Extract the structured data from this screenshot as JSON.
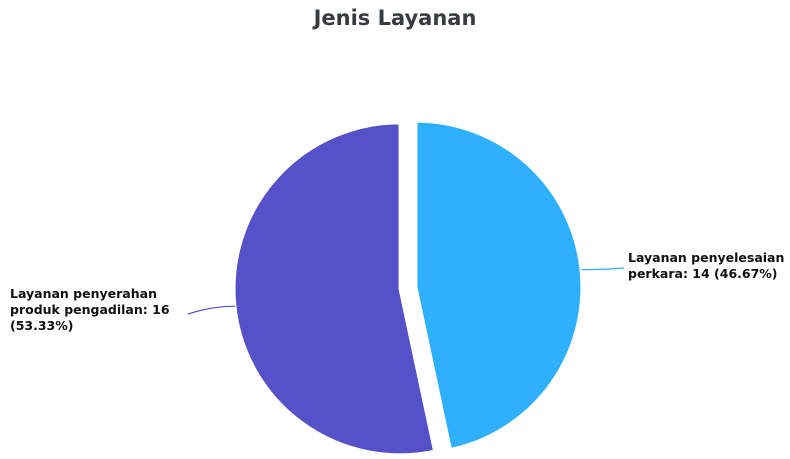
{
  "chart_data": {
    "type": "pie",
    "title": "Jenis Layanan",
    "slices": [
      {
        "name": "Layanan penyelesaian perkara",
        "value": 14,
        "percent": 46.67,
        "label_lines": [
          "Layanan penyelesaian",
          "perkara: 14 (46.67%)"
        ],
        "color": "#2fb0ff"
      },
      {
        "name": "Layanan penyerahan produk pengadilan",
        "value": 16,
        "percent": 53.33,
        "label_lines": [
          "Layanan penyerahan",
          "produk pengadilan: 16",
          "(53.33%)"
        ],
        "color": "#5451c9"
      }
    ],
    "start_angle_deg": 0,
    "direction": "clockwise",
    "exploded": true,
    "legend": "none"
  }
}
